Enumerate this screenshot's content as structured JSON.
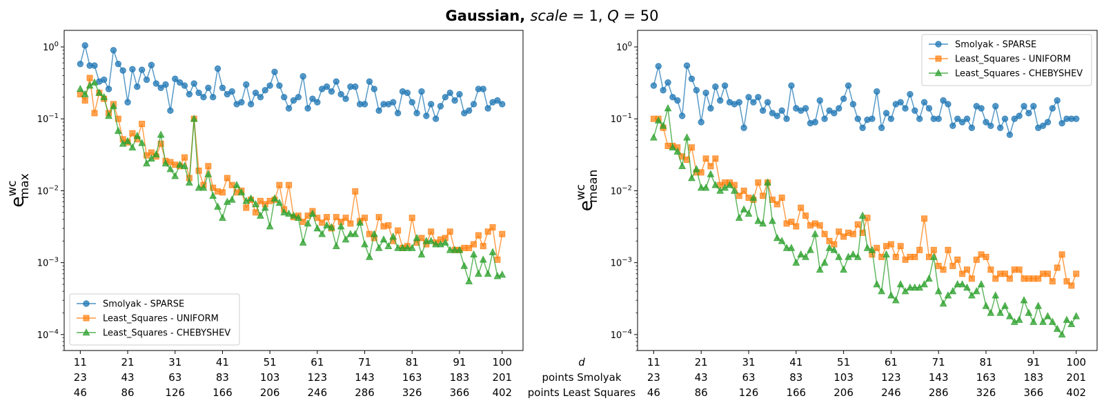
{
  "figure": {
    "title_bold": "Gaussian,",
    "title_math": "scale = 1, Q = 50"
  },
  "x_row_labels": [
    "d",
    "points Smolyak",
    "points Least Squares"
  ],
  "colors": {
    "Smolyak - SPARSE": "#1f77b4",
    "Least_Squares - UNIFORM": "#ff7f0e",
    "Least_Squares - CHEBYSHEV": "#2ca02c"
  },
  "chart_data": [
    {
      "type": "line",
      "ylabel": "e_max^wc",
      "yscale": "log",
      "ylim": [
        6e-05,
        1.7
      ],
      "xlim": [
        7.6,
        104.4
      ],
      "grid": false,
      "legend_position": "lower-left",
      "x_ticks": {
        "d": [
          11,
          21,
          31,
          41,
          51,
          61,
          71,
          81,
          91,
          100
        ],
        "points_smolyak": [
          23,
          43,
          63,
          83,
          103,
          123,
          143,
          163,
          183,
          201
        ],
        "points_least_squares": [
          46,
          86,
          126,
          166,
          206,
          246,
          286,
          326,
          366,
          402
        ]
      },
      "y_ticks": [
        "10^0",
        "10^-1",
        "10^-2",
        "10^-3",
        "10^-4"
      ],
      "x_start": 11,
      "x_end": 100,
      "series": [
        {
          "name": "Smolyak - SPARSE",
          "marker": "circle",
          "values": [
            0.58,
            1.05,
            0.55,
            0.55,
            0.33,
            0.35,
            0.26,
            0.9,
            0.58,
            0.47,
            0.17,
            0.49,
            0.28,
            0.48,
            0.35,
            0.56,
            0.31,
            0.27,
            0.3,
            0.13,
            0.36,
            0.32,
            0.29,
            0.22,
            0.31,
            0.23,
            0.2,
            0.27,
            0.2,
            0.5,
            0.27,
            0.22,
            0.24,
            0.16,
            0.17,
            0.3,
            0.16,
            0.23,
            0.2,
            0.25,
            0.29,
            0.45,
            0.29,
            0.2,
            0.14,
            0.18,
            0.2,
            0.39,
            0.14,
            0.19,
            0.17,
            0.26,
            0.28,
            0.24,
            0.33,
            0.22,
            0.19,
            0.28,
            0.28,
            0.16,
            0.16,
            0.33,
            0.26,
            0.13,
            0.16,
            0.16,
            0.17,
            0.12,
            0.24,
            0.23,
            0.17,
            0.12,
            0.24,
            0.11,
            0.16,
            0.1,
            0.15,
            0.2,
            0.23,
            0.18,
            0.22,
            0.12,
            0.13,
            0.16,
            0.26,
            0.26,
            0.14,
            0.17,
            0.18,
            0.16
          ]
        },
        {
          "name": "Least_Squares - UNIFORM",
          "marker": "square",
          "values": [
            0.22,
            0.18,
            0.37,
            0.12,
            0.23,
            0.19,
            0.12,
            0.16,
            0.1,
            0.052,
            0.047,
            0.063,
            0.052,
            0.085,
            0.031,
            0.034,
            0.03,
            0.045,
            0.026,
            0.025,
            0.023,
            0.022,
            0.029,
            0.015,
            0.1,
            0.019,
            0.012,
            0.022,
            0.011,
            0.0098,
            0.0095,
            0.015,
            0.012,
            0.0095,
            0.01,
            0.0058,
            0.0075,
            0.005,
            0.0072,
            0.0065,
            0.0072,
            0.0075,
            0.012,
            0.0055,
            0.012,
            0.0043,
            0.0045,
            0.0037,
            0.0045,
            0.0052,
            0.0042,
            0.0036,
            0.0043,
            0.003,
            0.0043,
            0.0037,
            0.0042,
            0.0035,
            0.0098,
            0.0038,
            0.0042,
            0.0025,
            0.0022,
            0.0043,
            0.0032,
            0.0033,
            0.002,
            0.0028,
            0.0016,
            0.0017,
            0.0042,
            0.0019,
            0.0022,
            0.0018,
            0.0027,
            0.0019,
            0.0021,
            0.0022,
            0.0027,
            0.0015,
            0.0015,
            0.0016,
            0.0016,
            0.0018,
            0.0024,
            0.0017,
            0.0027,
            0.0031,
            0.0011,
            0.0025
          ]
        },
        {
          "name": "Least_Squares - CHEBYSHEV",
          "marker": "triangle",
          "values": [
            0.26,
            0.22,
            0.29,
            0.32,
            0.23,
            0.2,
            0.11,
            0.15,
            0.068,
            0.045,
            0.049,
            0.04,
            0.058,
            0.046,
            0.024,
            0.028,
            0.032,
            0.06,
            0.024,
            0.02,
            0.016,
            0.023,
            0.022,
            0.013,
            0.1,
            0.011,
            0.011,
            0.017,
            0.0085,
            0.006,
            0.0042,
            0.007,
            0.0075,
            0.012,
            0.0095,
            0.0072,
            0.0078,
            0.0065,
            0.0045,
            0.0058,
            0.0032,
            0.0078,
            0.0068,
            0.005,
            0.0048,
            0.0045,
            0.0042,
            0.0019,
            0.0035,
            0.0048,
            0.003,
            0.0025,
            0.0033,
            0.0031,
            0.0017,
            0.0032,
            0.0021,
            0.0025,
            0.0025,
            0.0036,
            0.0018,
            0.0012,
            0.0025,
            0.0016,
            0.0021,
            0.0017,
            0.0023,
            0.0016,
            0.0016,
            0.0016,
            0.0016,
            0.0022,
            0.0013,
            0.002,
            0.002,
            0.0018,
            0.0018,
            0.0019,
            0.0015,
            0.0015,
            0.0015,
            0.0009,
            0.00055,
            0.0013,
            0.0007,
            0.0011,
            0.0007,
            0.0014,
            0.00065,
            0.00068
          ]
        }
      ]
    },
    {
      "type": "line",
      "ylabel": "e_mean^wc",
      "yscale": "log",
      "ylim": [
        6e-05,
        1.7
      ],
      "xlim": [
        7.6,
        104.4
      ],
      "grid": false,
      "legend_position": "upper-right",
      "x_ticks": {
        "d": [
          11,
          21,
          31,
          41,
          51,
          61,
          71,
          81,
          91,
          100
        ],
        "points_smolyak": [
          23,
          43,
          63,
          83,
          103,
          123,
          143,
          163,
          183,
          201
        ],
        "points_least_squares": [
          46,
          86,
          126,
          166,
          206,
          246,
          286,
          326,
          366,
          402
        ]
      },
      "y_ticks": [
        "10^0",
        "10^-1",
        "10^-2",
        "10^-3",
        "10^-4"
      ],
      "x_start": 11,
      "x_end": 100,
      "series": [
        {
          "name": "Smolyak - SPARSE",
          "marker": "circle",
          "values": [
            0.29,
            0.54,
            0.25,
            0.32,
            0.2,
            0.18,
            0.11,
            0.55,
            0.36,
            0.25,
            0.09,
            0.23,
            0.14,
            0.28,
            0.18,
            0.29,
            0.17,
            0.16,
            0.17,
            0.075,
            0.2,
            0.17,
            0.2,
            0.13,
            0.17,
            0.12,
            0.11,
            0.13,
            0.1,
            0.29,
            0.14,
            0.13,
            0.14,
            0.087,
            0.09,
            0.18,
            0.1,
            0.13,
            0.12,
            0.14,
            0.19,
            0.29,
            0.16,
            0.1,
            0.075,
            0.097,
            0.1,
            0.24,
            0.075,
            0.12,
            0.1,
            0.16,
            0.17,
            0.14,
            0.22,
            0.13,
            0.1,
            0.17,
            0.14,
            0.1,
            0.1,
            0.18,
            0.16,
            0.08,
            0.1,
            0.09,
            0.1,
            0.075,
            0.15,
            0.14,
            0.09,
            0.08,
            0.15,
            0.075,
            0.1,
            0.06,
            0.1,
            0.11,
            0.15,
            0.12,
            0.15,
            0.075,
            0.08,
            0.09,
            0.14,
            0.18,
            0.087,
            0.1,
            0.1,
            0.1
          ]
        },
        {
          "name": "Least_Squares - UNIFORM",
          "marker": "square",
          "values": [
            0.1,
            0.1,
            0.075,
            0.042,
            0.042,
            0.04,
            0.03,
            0.027,
            0.04,
            0.018,
            0.018,
            0.028,
            0.022,
            0.028,
            0.012,
            0.013,
            0.013,
            0.012,
            0.0085,
            0.01,
            0.008,
            0.0075,
            0.013,
            0.0085,
            0.013,
            0.0075,
            0.0065,
            0.008,
            0.0035,
            0.0037,
            0.0032,
            0.0058,
            0.0045,
            0.0033,
            0.0035,
            0.0033,
            0.0025,
            0.002,
            0.0018,
            0.0027,
            0.0023,
            0.0026,
            0.0025,
            0.0034,
            0.0026,
            0.0042,
            0.0013,
            0.0016,
            0.0012,
            0.0017,
            0.0018,
            0.0012,
            0.0017,
            0.0011,
            0.0012,
            0.0012,
            0.0015,
            0.0041,
            0.0012,
            0.0015,
            0.0009,
            0.0008,
            0.0015,
            0.0009,
            0.0011,
            0.0007,
            0.0008,
            0.0006,
            0.0011,
            0.0013,
            0.0012,
            0.0008,
            0.0006,
            0.0007,
            0.0007,
            0.0006,
            0.0008,
            0.0008,
            0.0006,
            0.0006,
            0.0006,
            0.0006,
            0.0007,
            0.0007,
            0.00055,
            0.00085,
            0.0013,
            0.00055,
            0.00048,
            0.0007
          ]
        },
        {
          "name": "Least_Squares - CHEBYSHEV",
          "marker": "triangle",
          "values": [
            0.055,
            0.095,
            0.08,
            0.14,
            0.04,
            0.035,
            0.022,
            0.055,
            0.015,
            0.02,
            0.011,
            0.011,
            0.017,
            0.012,
            0.01,
            0.011,
            0.012,
            0.01,
            0.0042,
            0.0055,
            0.0048,
            0.008,
            0.0038,
            0.0035,
            0.013,
            0.0038,
            0.0022,
            0.002,
            0.0016,
            0.0016,
            0.001,
            0.0013,
            0.0012,
            0.0015,
            0.0025,
            0.0008,
            0.001,
            0.0016,
            0.0015,
            0.0012,
            0.0008,
            0.0012,
            0.0013,
            0.0012,
            0.0045,
            0.0016,
            0.0015,
            0.0005,
            0.0004,
            0.0013,
            0.00035,
            0.0003,
            0.0005,
            0.0004,
            0.00045,
            0.00045,
            0.00045,
            0.0005,
            0.0006,
            0.0012,
            0.0004,
            0.00027,
            0.00035,
            0.0004,
            0.0005,
            0.0005,
            0.00045,
            0.00035,
            0.0004,
            0.0005,
            0.00025,
            0.0002,
            0.00035,
            0.0002,
            0.00025,
            0.00018,
            0.00015,
            0.00016,
            0.0003,
            0.0002,
            0.00015,
            0.00025,
            0.00015,
            0.00018,
            0.00015,
            0.00012,
            0.0001,
            0.00016,
            0.00014,
            0.00018
          ]
        }
      ]
    }
  ]
}
